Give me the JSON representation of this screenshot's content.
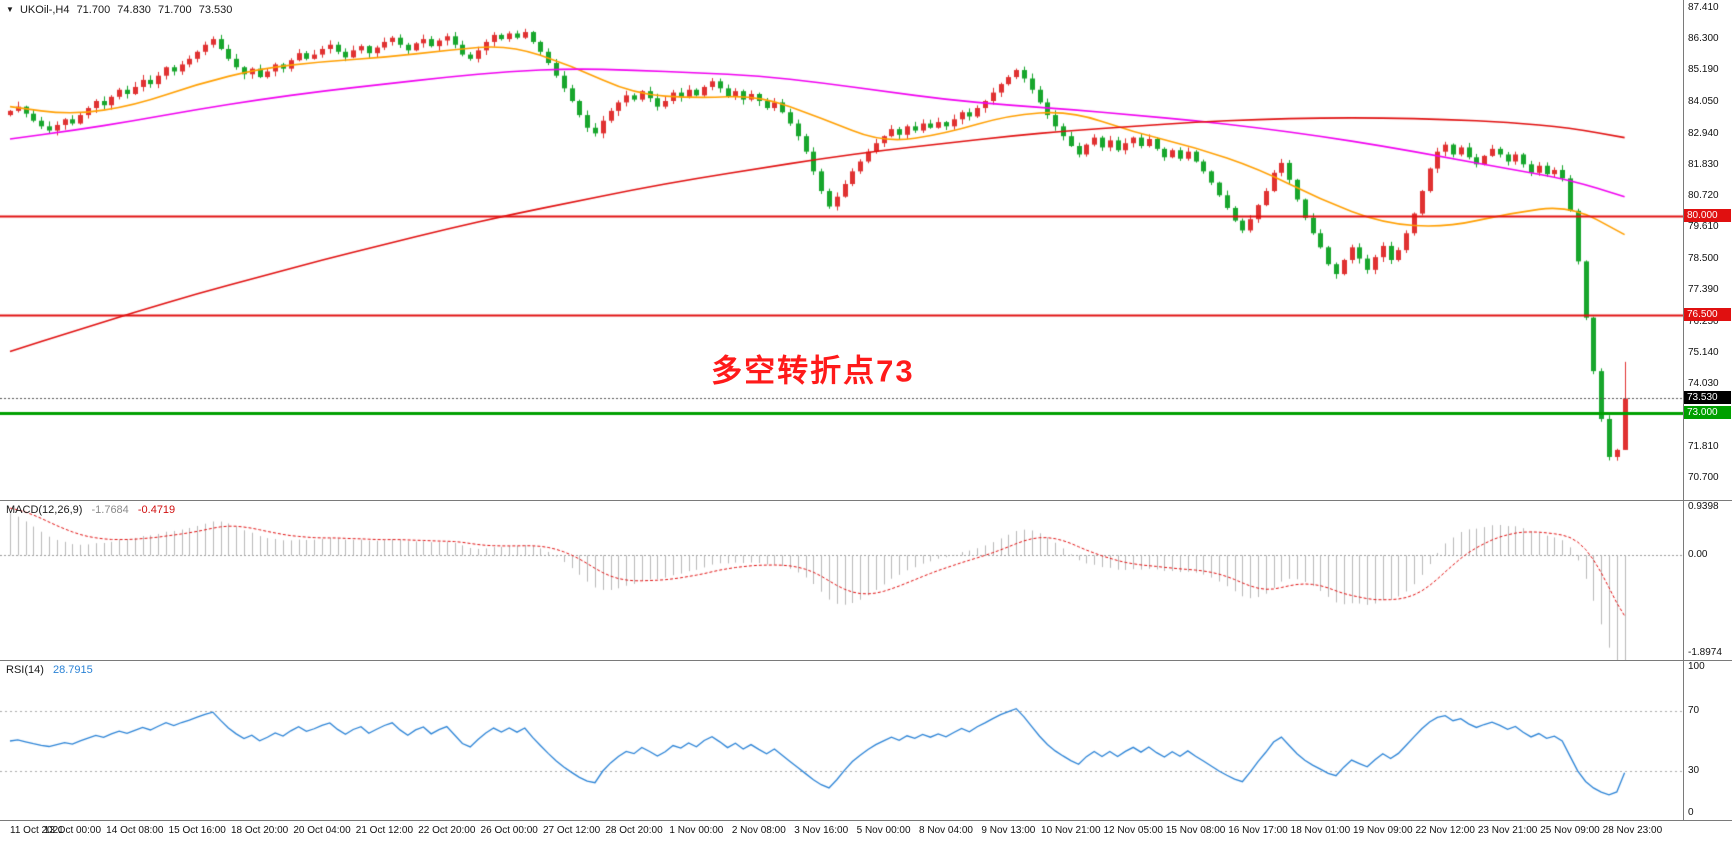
{
  "header": {
    "symbol_period": "UKOil-,H4",
    "open": "71.700",
    "high": "74.830",
    "low": "71.700",
    "close": "73.530"
  },
  "chart_data": [
    {
      "type": "candlestick",
      "title": "UKOil-,H4",
      "symbol": "UKOil-",
      "timeframe": "H4",
      "ylim": [
        69.92,
        87.69
      ],
      "y_ticks": [
        87.41,
        86.3,
        85.19,
        84.05,
        82.94,
        81.83,
        80.72,
        79.61,
        78.5,
        77.39,
        76.25,
        75.14,
        74.03,
        71.81,
        70.7
      ],
      "x_labels": [
        "11 Oct 2021",
        "13 Oct 00:00",
        "14 Oct 08:00",
        "15 Oct 16:00",
        "18 Oct 20:00",
        "20 Oct 04:00",
        "21 Oct 12:00",
        "22 Oct 20:00",
        "26 Oct 00:00",
        "27 Oct 12:00",
        "28 Oct 20:00",
        "1 Nov 00:00",
        "2 Nov 08:00",
        "3 Nov 16:00",
        "5 Nov 00:00",
        "8 Nov 04:00",
        "9 Nov 13:00",
        "10 Nov 21:00",
        "12 Nov 05:00",
        "15 Nov 08:00",
        "16 Nov 17:00",
        "18 Nov 01:00",
        "19 Nov 09:00",
        "22 Nov 12:00",
        "23 Nov 21:00",
        "25 Nov 09:00",
        "28 Nov 23:00"
      ],
      "bars_per_label": 8,
      "first_open": 83.6,
      "closes": [
        83.75,
        83.9,
        83.65,
        83.4,
        83.2,
        83.05,
        83.25,
        83.45,
        83.3,
        83.6,
        83.85,
        84.1,
        83.95,
        84.25,
        84.5,
        84.35,
        84.6,
        84.85,
        84.7,
        85.0,
        85.3,
        85.15,
        85.4,
        85.6,
        85.85,
        86.1,
        86.3,
        85.95,
        85.6,
        85.3,
        85.05,
        85.25,
        84.95,
        85.15,
        85.4,
        85.25,
        85.55,
        85.8,
        85.6,
        85.75,
        85.95,
        86.1,
        85.85,
        85.65,
        85.9,
        86.05,
        85.8,
        86.0,
        86.2,
        86.35,
        86.1,
        85.9,
        86.15,
        86.3,
        86.05,
        86.25,
        86.4,
        86.1,
        85.75,
        85.6,
        85.9,
        86.2,
        86.45,
        86.3,
        86.5,
        86.35,
        86.55,
        86.2,
        85.85,
        85.45,
        85.0,
        84.55,
        84.1,
        83.6,
        83.15,
        82.95,
        83.4,
        83.75,
        84.05,
        84.3,
        84.15,
        84.45,
        84.2,
        83.9,
        84.1,
        84.4,
        84.25,
        84.5,
        84.3,
        84.6,
        84.8,
        84.55,
        84.25,
        84.45,
        84.15,
        84.35,
        84.1,
        83.85,
        84.05,
        83.7,
        83.3,
        82.85,
        82.3,
        81.6,
        80.9,
        80.35,
        80.7,
        81.15,
        81.6,
        81.95,
        82.3,
        82.6,
        82.85,
        83.1,
        82.9,
        83.2,
        83.05,
        83.3,
        83.15,
        83.35,
        83.2,
        83.45,
        83.7,
        83.55,
        83.85,
        84.1,
        84.4,
        84.7,
        84.95,
        85.2,
        84.9,
        84.5,
        84.05,
        83.6,
        83.2,
        82.85,
        82.5,
        82.2,
        82.55,
        82.8,
        82.45,
        82.7,
        82.35,
        82.6,
        82.8,
        82.5,
        82.75,
        82.4,
        82.1,
        82.35,
        82.05,
        82.3,
        81.95,
        81.6,
        81.2,
        80.75,
        80.3,
        79.85,
        79.5,
        79.9,
        80.4,
        80.9,
        81.55,
        81.9,
        81.3,
        80.6,
        79.95,
        79.4,
        78.9,
        78.3,
        77.95,
        78.45,
        78.9,
        78.5,
        78.1,
        78.55,
        78.95,
        78.45,
        78.8,
        79.4,
        80.1,
        80.9,
        81.7,
        82.3,
        82.55,
        82.2,
        82.45,
        82.1,
        81.85,
        82.15,
        82.4,
        82.2,
        81.95,
        82.2,
        81.85,
        81.55,
        81.8,
        81.5,
        81.65,
        81.35,
        80.2,
        78.4,
        76.4,
        74.5,
        72.8,
        71.45,
        71.7,
        73.53
      ],
      "last_candle": {
        "open": 71.7,
        "high": 74.83,
        "low": 71.7,
        "close": 73.53
      },
      "style": {
        "up": "#e03131",
        "down": "#17a62c"
      },
      "moving_averages": [
        {
          "name": "ma-medium-orange",
          "color": "#ff9f00",
          "sampled_every": 8,
          "values": [
            83.9,
            83.6,
            83.95,
            84.7,
            85.25,
            85.5,
            85.65,
            85.9,
            86.1,
            85.35,
            84.35,
            84.2,
            84.3,
            83.5,
            82.6,
            82.95,
            83.6,
            83.75,
            83.0,
            82.45,
            81.7,
            80.6,
            79.75,
            79.6,
            80.1,
            80.4,
            79.35
          ]
        },
        {
          "name": "ma-slow-magenta",
          "color": "#f000f0",
          "sampled_every": 8,
          "values": [
            82.75,
            83.05,
            83.4,
            83.8,
            84.15,
            84.45,
            84.7,
            84.95,
            85.15,
            85.25,
            85.2,
            85.1,
            85.0,
            84.75,
            84.45,
            84.15,
            83.95,
            83.8,
            83.6,
            83.4,
            83.15,
            82.85,
            82.5,
            82.1,
            81.7,
            81.3,
            80.7
          ]
        },
        {
          "name": "ma-long-red",
          "color": "#e01010",
          "sampled_every": 8,
          "values": [
            75.2,
            75.9,
            76.6,
            77.25,
            77.85,
            78.45,
            79.0,
            79.55,
            80.05,
            80.5,
            80.95,
            81.35,
            81.7,
            82.05,
            82.35,
            82.6,
            82.85,
            83.05,
            83.2,
            83.35,
            83.45,
            83.5,
            83.5,
            83.45,
            83.35,
            83.15,
            82.8
          ]
        }
      ],
      "levels": [
        {
          "price": 80.0,
          "label": "80.000",
          "color": "#e01010",
          "line": "solid",
          "width": 2,
          "role": "resistance"
        },
        {
          "price": 76.5,
          "label": "76.500",
          "color": "#e01010",
          "line": "solid",
          "width": 2,
          "role": "resistance"
        },
        {
          "price": 73.53,
          "label": "73.530",
          "color": "#000000",
          "line": "dotted",
          "width": 1,
          "role": "current-price"
        },
        {
          "price": 73.0,
          "label": "73.000",
          "color": "#00a000",
          "line": "solid",
          "width": 3,
          "role": "support"
        }
      ],
      "annotation": {
        "text": "多空转折点73",
        "color": "#ff1a1a",
        "x_frac": 0.483,
        "price": 74.6
      }
    },
    {
      "type": "macd-histogram",
      "label": "MACD(12,26,9)",
      "values_shown": [
        "-1.7684",
        "-0.4719"
      ],
      "params": {
        "fast": 12,
        "slow": 26,
        "signal": 9
      },
      "ylim": [
        -1.8974,
        0.9398
      ],
      "y_ticks": [
        {
          "value": 0.9398,
          "label": "0.9398"
        },
        {
          "value": 0,
          "label": "0.00"
        },
        {
          "value": -1.8974,
          "label": "-1.8974"
        }
      ],
      "hist_color": "#b8b8b8",
      "signal_color": "#e01010",
      "derived_from": "closes"
    },
    {
      "type": "line",
      "label": "RSI(14)",
      "value_shown": "28.7915",
      "period": 14,
      "ylim": [
        0,
        100
      ],
      "levels": [
        70,
        30
      ],
      "y_ticks": [
        {
          "value": 100,
          "label": "100"
        },
        {
          "value": 70,
          "label": "70"
        },
        {
          "value": 30,
          "label": "30"
        },
        {
          "value": 0,
          "label": "0"
        }
      ],
      "color": "#2b83d6",
      "derived_from": "closes"
    }
  ]
}
